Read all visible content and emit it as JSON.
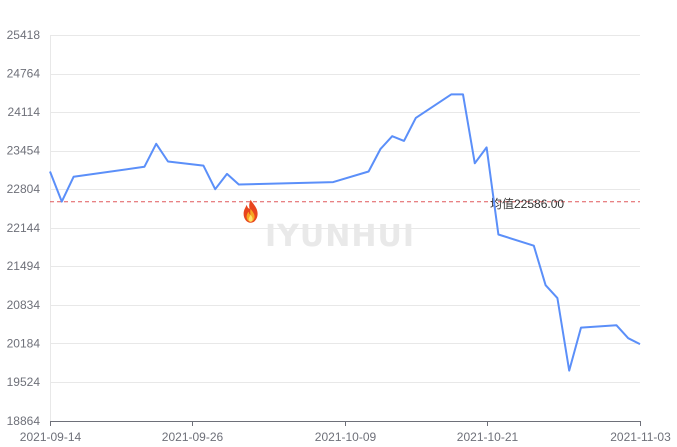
{
  "watermark": "IYUNHUI",
  "marker_icon": "fire-icon",
  "colors": {
    "line": "#5b8ff9",
    "avg_line": "#e0585b",
    "grid": "#e8e8e8",
    "axis": "#6e7079"
  },
  "chart_data": {
    "type": "line",
    "y_ticks": [
      18864,
      19524,
      20184,
      20834,
      21494,
      22144,
      22804,
      23454,
      24114,
      24764,
      25418
    ],
    "x_tick_labels": [
      "2021-09-14",
      "2021-09-26",
      "2021-10-09",
      "2021-10-21",
      "2021-11-03"
    ],
    "ylim": [
      18864,
      25418
    ],
    "xlim": [
      "2021-09-14",
      "2021-11-03"
    ],
    "grid": true,
    "series": [
      {
        "points": [
          [
            "2021-09-14",
            23100
          ],
          [
            "2021-09-15",
            22590
          ],
          [
            "2021-09-16",
            23010
          ],
          [
            "2021-09-22",
            23180
          ],
          [
            "2021-09-23",
            23570
          ],
          [
            "2021-09-24",
            23270
          ],
          [
            "2021-09-27",
            23200
          ],
          [
            "2021-09-28",
            22800
          ],
          [
            "2021-09-29",
            23060
          ],
          [
            "2021-09-30",
            22880
          ],
          [
            "2021-10-08",
            22920
          ],
          [
            "2021-10-11",
            23100
          ],
          [
            "2021-10-12",
            23480
          ],
          [
            "2021-10-13",
            23700
          ],
          [
            "2021-10-14",
            23620
          ],
          [
            "2021-10-15",
            24010
          ],
          [
            "2021-10-18",
            24410
          ],
          [
            "2021-10-19",
            24410
          ],
          [
            "2021-10-20",
            23240
          ],
          [
            "2021-10-21",
            23510
          ],
          [
            "2021-10-22",
            22030
          ],
          [
            "2021-10-25",
            21840
          ],
          [
            "2021-10-26",
            21170
          ],
          [
            "2021-10-27",
            20950
          ],
          [
            "2021-10-28",
            19720
          ],
          [
            "2021-10-29",
            20450
          ],
          [
            "2021-11-01",
            20490
          ],
          [
            "2021-11-02",
            20270
          ],
          [
            "2021-11-03",
            20170
          ]
        ]
      }
    ],
    "average": {
      "value": 22586.0,
      "label": "均值22586.00"
    },
    "marker": {
      "date": "2021-10-01",
      "value": 22586.0,
      "icon": "fire-icon"
    }
  }
}
